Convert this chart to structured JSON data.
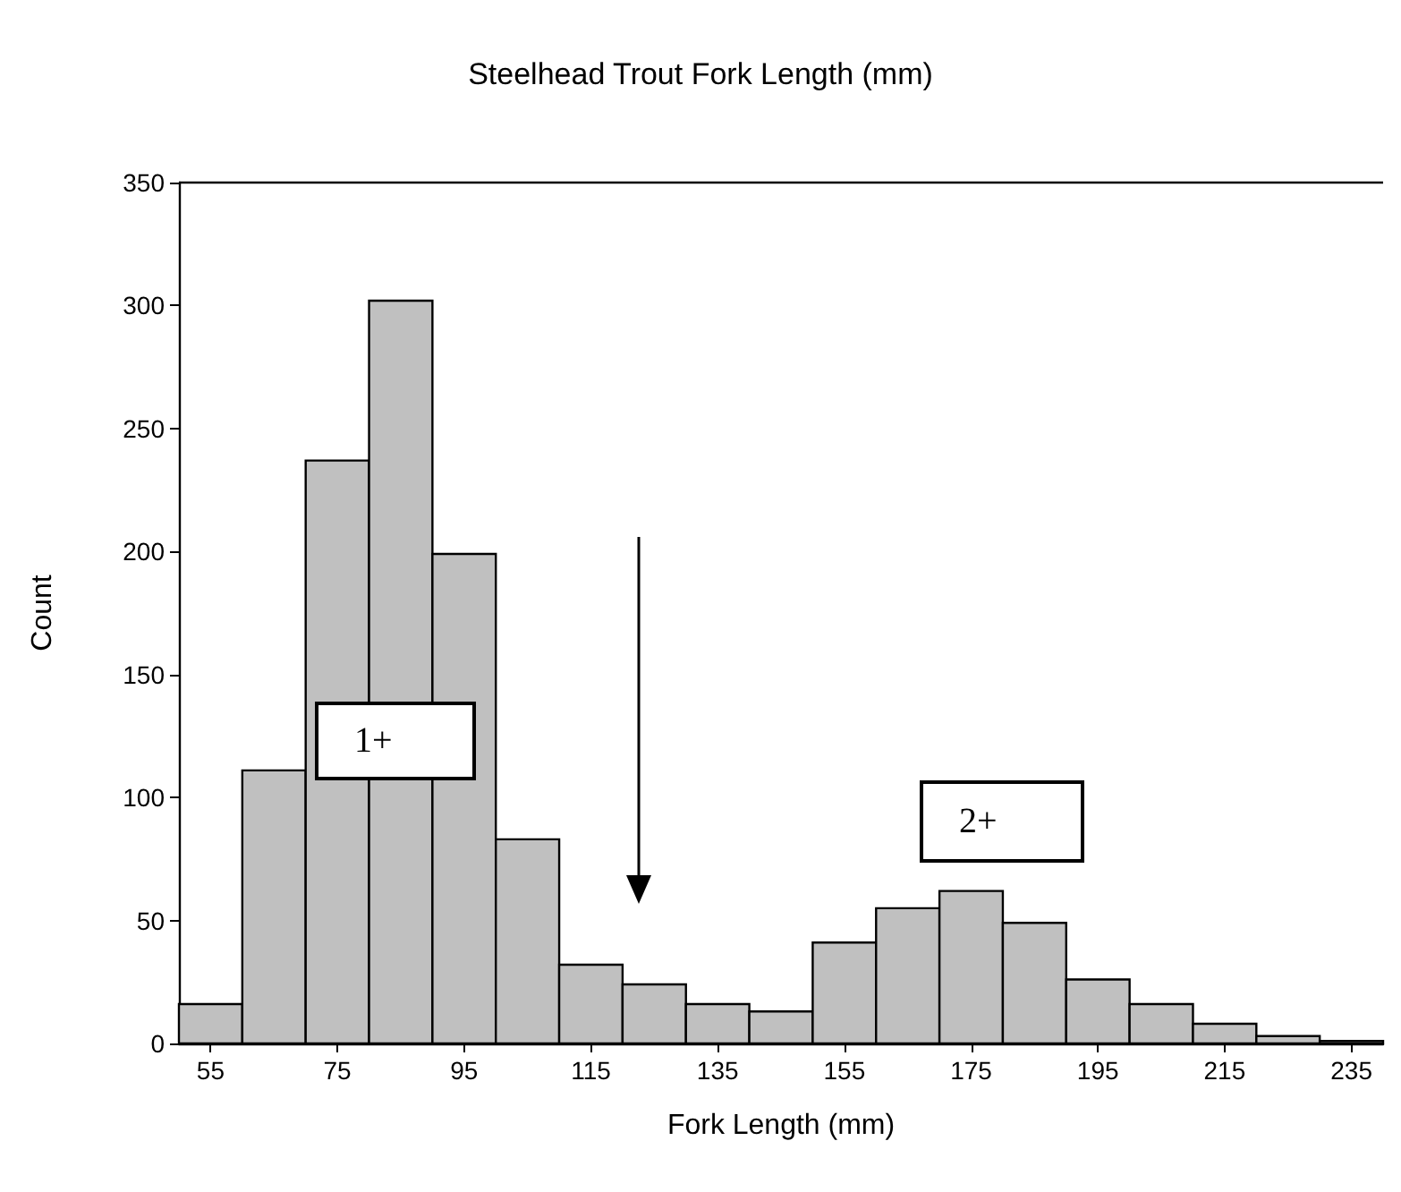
{
  "chart_data": {
    "type": "histogram",
    "title": "Steelhead Trout Fork Length (mm)",
    "xlabel": "Fork Length (mm)",
    "ylabel": "Count",
    "bins": [
      50,
      60,
      70,
      80,
      90,
      100,
      110,
      120,
      130,
      140,
      150,
      160,
      170,
      180,
      190,
      200,
      210,
      220,
      230,
      240
    ],
    "values": [
      16,
      111,
      237,
      302,
      199,
      83,
      32,
      24,
      16,
      13,
      41,
      55,
      62,
      49,
      26,
      16,
      8,
      3,
      1
    ],
    "color": "#c0c0c0",
    "xlim": [
      50,
      240
    ],
    "ylim": [
      0,
      350
    ],
    "xticks": [
      55,
      75,
      95,
      115,
      135,
      155,
      175,
      195,
      215,
      235
    ],
    "yticks": [
      0,
      50,
      100,
      150,
      200,
      250,
      300,
      350
    ],
    "grid": false,
    "annotations": [
      "1+",
      "2+"
    ]
  }
}
